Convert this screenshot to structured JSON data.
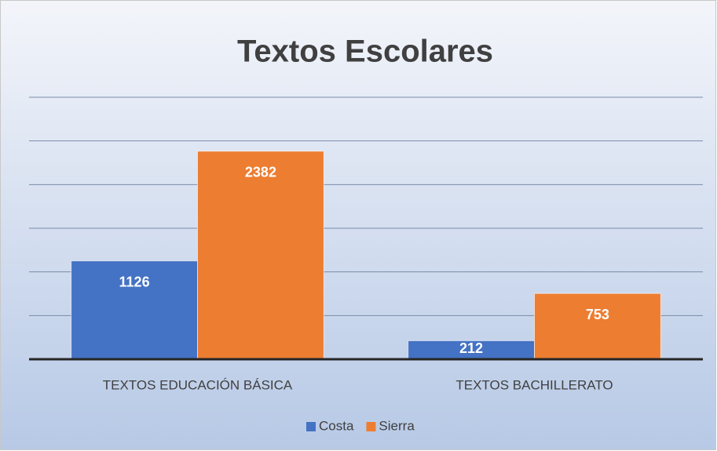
{
  "chart_data": {
    "type": "bar",
    "title": "Textos Escolares",
    "categories": [
      "TEXTOS EDUCACIÓN BÁSICA",
      "TEXTOS BACHILLERATO"
    ],
    "series": [
      {
        "name": "Costa",
        "color": "#4472c4",
        "values": [
          1126,
          212
        ]
      },
      {
        "name": "Sierra",
        "color": "#ed7d31",
        "values": [
          2382,
          753
        ]
      }
    ],
    "ylim": [
      0,
      3000
    ],
    "yticks": [
      0,
      500,
      1000,
      1500,
      2000,
      2500,
      3000
    ],
    "grid": true,
    "legend": "bottom"
  }
}
